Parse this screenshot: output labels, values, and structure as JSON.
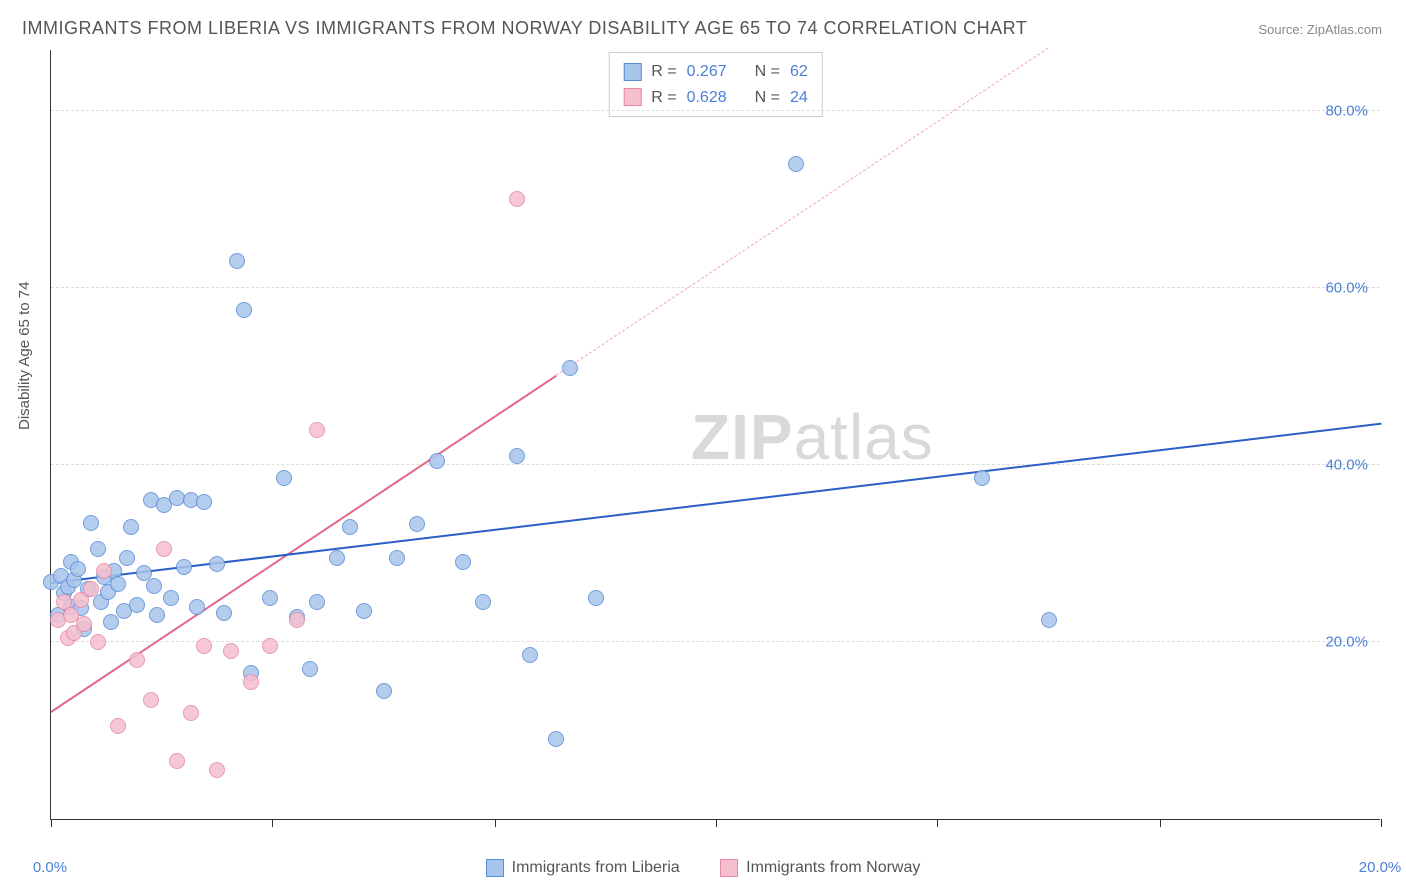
{
  "title": "IMMIGRANTS FROM LIBERIA VS IMMIGRANTS FROM NORWAY DISABILITY AGE 65 TO 74 CORRELATION CHART",
  "source_prefix": "Source: ",
  "source_name": "ZipAtlas.com",
  "ylabel": "Disability Age 65 to 74",
  "watermark_bold": "ZIP",
  "watermark_rest": "atlas",
  "chart": {
    "type": "scatter",
    "xlim": [
      0,
      20
    ],
    "ylim": [
      0,
      87
    ],
    "x_ticks": [
      0,
      3.33,
      6.67,
      10,
      13.33,
      16.67,
      20
    ],
    "x_tick_labels": {
      "0": "0.0%",
      "20": "20.0%"
    },
    "y_gridlines": [
      20,
      40,
      60,
      80
    ],
    "y_tick_labels": [
      "20.0%",
      "40.0%",
      "60.0%",
      "80.0%"
    ],
    "grid_color": "#dddddd",
    "axis_color": "#333333",
    "background_color": "#ffffff",
    "label_color": "#4a7fd8",
    "point_radius": 8,
    "point_border_width": 1.2,
    "point_fill_opacity": 0.35,
    "series": [
      {
        "name": "Immigrants from Liberia",
        "color": "#5b8dd6",
        "fill": "#a8c5ec",
        "R": "0.267",
        "N": "62",
        "trend": {
          "x1": 0,
          "y1": 26.5,
          "x2": 20,
          "y2": 44.5,
          "color": "#2b5fc7",
          "width": 2.4,
          "dash": false
        },
        "points": [
          [
            0.0,
            26.8
          ],
          [
            0.1,
            23.0
          ],
          [
            0.15,
            27.5
          ],
          [
            0.2,
            25.5
          ],
          [
            0.25,
            26.2
          ],
          [
            0.3,
            24.0
          ],
          [
            0.3,
            29.0
          ],
          [
            0.35,
            27.0
          ],
          [
            0.4,
            28.3
          ],
          [
            0.45,
            23.8
          ],
          [
            0.5,
            21.5
          ],
          [
            0.55,
            26.0
          ],
          [
            0.6,
            33.5
          ],
          [
            0.7,
            30.5
          ],
          [
            0.75,
            24.5
          ],
          [
            0.8,
            27.3
          ],
          [
            0.85,
            25.7
          ],
          [
            0.9,
            22.3
          ],
          [
            0.95,
            28.0
          ],
          [
            1.0,
            26.5
          ],
          [
            1.1,
            23.5
          ],
          [
            1.15,
            29.5
          ],
          [
            1.2,
            33.0
          ],
          [
            1.3,
            24.2
          ],
          [
            1.4,
            27.8
          ],
          [
            1.5,
            36.0
          ],
          [
            1.55,
            26.3
          ],
          [
            1.6,
            23.0
          ],
          [
            1.7,
            35.5
          ],
          [
            1.8,
            25.0
          ],
          [
            1.9,
            36.3
          ],
          [
            2.0,
            28.5
          ],
          [
            2.1,
            36.0
          ],
          [
            2.2,
            24.0
          ],
          [
            2.3,
            35.8
          ],
          [
            2.5,
            28.8
          ],
          [
            2.6,
            23.3
          ],
          [
            2.8,
            63.0
          ],
          [
            2.9,
            57.5
          ],
          [
            3.0,
            16.5
          ],
          [
            3.3,
            25.0
          ],
          [
            3.5,
            38.5
          ],
          [
            3.7,
            22.8
          ],
          [
            3.9,
            17.0
          ],
          [
            4.0,
            24.5
          ],
          [
            4.3,
            29.5
          ],
          [
            4.5,
            33.0
          ],
          [
            4.7,
            23.5
          ],
          [
            5.0,
            14.5
          ],
          [
            5.2,
            29.5
          ],
          [
            5.5,
            33.3
          ],
          [
            5.8,
            40.5
          ],
          [
            6.2,
            29.0
          ],
          [
            6.5,
            24.5
          ],
          [
            7.0,
            41.0
          ],
          [
            7.2,
            18.5
          ],
          [
            7.6,
            9.0
          ],
          [
            7.8,
            51.0
          ],
          [
            8.2,
            25.0
          ],
          [
            11.2,
            74.0
          ],
          [
            14.0,
            38.5
          ],
          [
            15.0,
            22.5
          ]
        ]
      },
      {
        "name": "Immigrants from Norway",
        "color": "#e68aa2",
        "fill": "#f5bfcf",
        "R": "0.628",
        "N": "24",
        "trend_solid": {
          "x1": 0,
          "y1": 12.0,
          "x2": 7.6,
          "y2": 50.0,
          "color": "#e06a88",
          "width": 2.2,
          "dash": false
        },
        "trend_dash": {
          "x1": 7.6,
          "y1": 50.0,
          "x2": 15.0,
          "y2": 87.0,
          "color": "#f0a8b8",
          "width": 1.6,
          "dash": true
        },
        "points": [
          [
            0.1,
            22.5
          ],
          [
            0.2,
            24.5
          ],
          [
            0.25,
            20.5
          ],
          [
            0.3,
            23.0
          ],
          [
            0.35,
            21.0
          ],
          [
            0.45,
            24.8
          ],
          [
            0.5,
            22.0
          ],
          [
            0.6,
            26.0
          ],
          [
            0.7,
            20.0
          ],
          [
            0.8,
            28.0
          ],
          [
            1.0,
            10.5
          ],
          [
            1.3,
            18.0
          ],
          [
            1.5,
            13.5
          ],
          [
            1.7,
            30.5
          ],
          [
            1.9,
            6.5
          ],
          [
            2.1,
            12.0
          ],
          [
            2.3,
            19.5
          ],
          [
            2.5,
            5.5
          ],
          [
            2.7,
            19.0
          ],
          [
            3.0,
            15.5
          ],
          [
            3.3,
            19.5
          ],
          [
            3.7,
            22.5
          ],
          [
            4.0,
            44.0
          ],
          [
            7.0,
            70.0
          ]
        ]
      }
    ]
  },
  "legend_top": {
    "r_label": "R =",
    "n_label": "N ="
  },
  "legend_bottom": {
    "series1": "Immigrants from Liberia",
    "series2": "Immigrants from Norway"
  }
}
